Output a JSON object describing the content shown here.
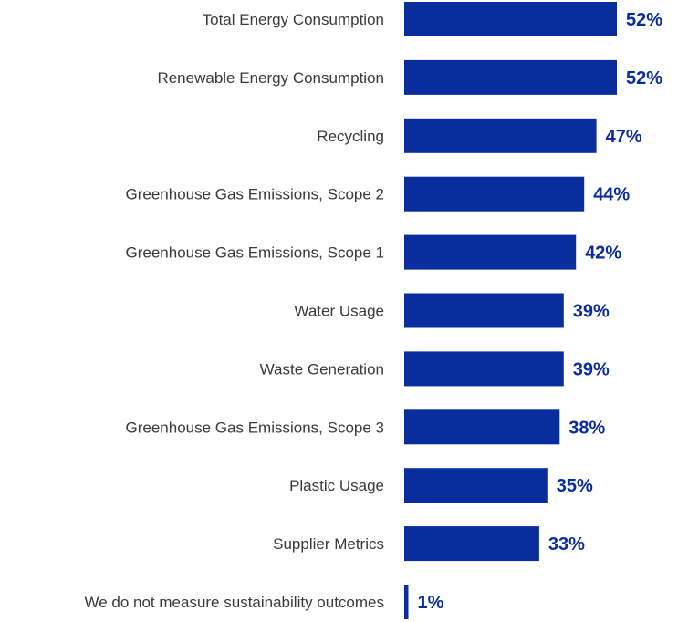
{
  "chart_data": {
    "type": "bar",
    "orientation": "horizontal",
    "categories": [
      "Total Energy Consumption",
      "Renewable Energy Consumption",
      "Recycling",
      "Greenhouse Gas Emissions, Scope 2",
      "Greenhouse Gas Emissions, Scope 1",
      "Water Usage",
      "Waste Generation",
      "Greenhouse Gas Emissions, Scope 3",
      "Plastic Usage",
      "Supplier Metrics",
      "We do not measure sustainability outcomes"
    ],
    "values": [
      52,
      52,
      47,
      44,
      42,
      39,
      39,
      38,
      35,
      33,
      1
    ],
    "value_labels": [
      "52%",
      "52%",
      "47%",
      "44%",
      "42%",
      "39%",
      "39%",
      "38%",
      "35%",
      "33%",
      "1%"
    ],
    "unit": "%",
    "xlim": [
      0,
      52
    ],
    "grid": false,
    "legend": "none",
    "colors": {
      "bar": "#0a2d9e",
      "value_label": "#0a2d9e",
      "category_label": "#3a3a3a",
      "background": "#ffffff"
    }
  }
}
